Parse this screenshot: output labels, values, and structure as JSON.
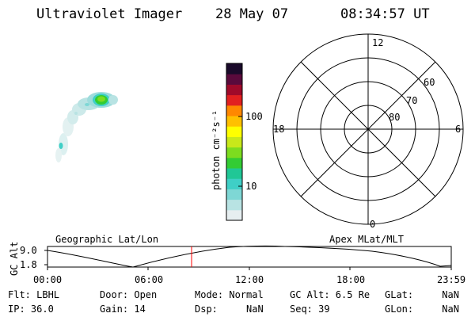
{
  "header": {
    "instrument": "Ultraviolet Imager",
    "date": "28 May 07",
    "time": "08:34:57 UT"
  },
  "colorbar": {
    "unit_label": "photon cm⁻²s⁻¹",
    "ticks": [
      "100",
      "10"
    ],
    "colors": [
      "#e6eef0",
      "#b8e3e3",
      "#7ed7d5",
      "#3fcfc6",
      "#20c796",
      "#33cc33",
      "#7ddc1f",
      "#c8e81a",
      "#ffff00",
      "#ffc000",
      "#ff8800",
      "#e22020",
      "#a00a2a",
      "#5a0a3c",
      "#1a0a2a"
    ]
  },
  "polar": {
    "mlt_labels": [
      "12",
      "18",
      "6",
      "0"
    ],
    "lat_labels": [
      "60",
      "70",
      "80"
    ]
  },
  "timeline": {
    "left_title": "Geographic Lat/Lon",
    "right_title": "Apex MLat/MLT",
    "ylabel": "GC Alt",
    "y_max": "9.0",
    "y_min": "1.8",
    "x_ticks": [
      "00:00",
      "06:00",
      "12:00",
      "18:00",
      "23:59"
    ],
    "marker_color": "#ff0000",
    "marker_time": "08:34:57"
  },
  "status": {
    "flt": "Flt: LBHL",
    "ip": "IP: 36.0",
    "door": "Door: Open",
    "gain": "Gain: 14",
    "mode": "Mode: Normal",
    "dsp": "Dsp:     NaN",
    "gcalt": "GC Alt: 6.5 Re",
    "seq": "Seq: 39",
    "glat": "GLat:     NaN",
    "glon": "GLon:     NaN"
  }
}
